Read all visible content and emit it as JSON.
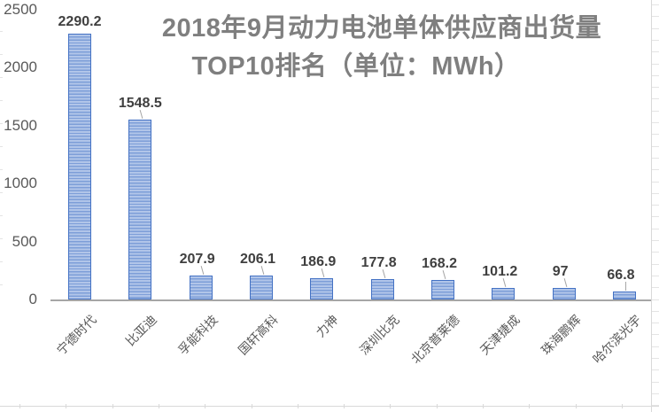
{
  "chart_data": {
    "type": "bar",
    "title_line1": "2018年9月动力电池单体供应商出货量",
    "title_line2": "TOP10排名（单位：MWh）",
    "title": "2018年9月动力电池单体供应商出货量TOP10排名（单位：MWh）",
    "unit": "MWh",
    "categories": [
      "宁德时代",
      "比亚迪",
      "孚能科技",
      "国轩高科",
      "力神",
      "深圳比克",
      "北京普莱德",
      "天津捷成",
      "珠海鹏辉",
      "哈尔滨光宇"
    ],
    "values": [
      2290.2,
      1548.5,
      207.9,
      206.1,
      186.9,
      177.8,
      168.2,
      101.2,
      97,
      66.8
    ],
    "value_labels": [
      "2290.2",
      "1548.5",
      "207.9",
      "206.1",
      "186.9",
      "177.8",
      "168.2",
      "101.2",
      "97",
      "66.8"
    ],
    "y_ticks": [
      0,
      500,
      1000,
      1500,
      2000,
      2500
    ],
    "ylim": [
      0,
      2500
    ],
    "xlabel": "",
    "ylabel": "",
    "grid": false,
    "legend": false,
    "data_labels": true,
    "category_label_rotation_deg": -45,
    "colors": {
      "bar_border": "#4472c4",
      "bar_stripe_light": "#b1c5e9",
      "bar_stripe_dark": "#7d9ed8",
      "title": "#7f7f7f",
      "axis_tick_label": "#595959",
      "value_label": "#3f3f3f",
      "axis_line": "#a6a6a6",
      "spreadsheet_grid": "#d9d9d9"
    }
  }
}
